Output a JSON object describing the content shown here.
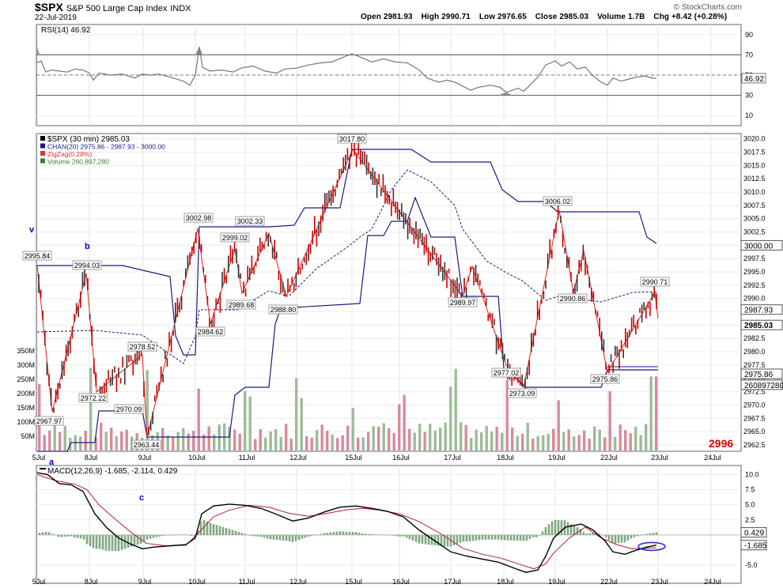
{
  "header": {
    "symbol": "$SPX",
    "name": "S&P 500 Large Cap Index",
    "exchange": "INDX",
    "date": "22-Jul-2019",
    "copyright": "© StockCharts.com",
    "open": "Open 2981.93",
    "high": "High 2990.71",
    "low": "Low 2976.65",
    "close": "Close 2985.03",
    "volume": "Volume 1.7B",
    "chg": "Chg +8.42 (+0.28%)"
  },
  "rsi_panel": {
    "label": "RSI(14) 46.92",
    "current_tag": "46.92",
    "y_ticks": [
      90,
      70,
      50,
      30,
      10
    ]
  },
  "price_panel": {
    "legend": [
      "$SPX (30 min) 2985.03",
      "CHAN(20) 2975.86 - 2987.93 - 3000.00",
      "ZigZag(0.28%)",
      "Volume 260,897,280"
    ],
    "y_ticks": [
      "3020.0",
      "3017.5",
      "3015.0",
      "3012.5",
      "3010.0",
      "3007.5",
      "3005.0",
      "3002.5",
      "3000.0",
      "2997.5",
      "2995.0",
      "2992.5",
      "2990.0",
      "2987.5",
      "2985.0",
      "2982.5",
      "2980.0",
      "2977.5",
      "2975.0",
      "2972.5",
      "2970.0",
      "2967.5",
      "2965.0",
      "2962.5"
    ],
    "right_tags": [
      "3000.00",
      "2987.93",
      "2985.03",
      "2975.86",
      "260897280"
    ],
    "volume_ticks": [
      "350M",
      "300M",
      "250M",
      "200M",
      "150M",
      "100M",
      "50M"
    ],
    "pivot_labels": [
      "2995.84",
      "2994.03",
      "2967.97",
      "2972.22",
      "2978.52",
      "2970.09",
      "2963.44",
      "3002.98",
      "2984.62",
      "2999.02",
      "2989.68",
      "3002.33",
      "2988.80",
      "3017.80",
      "2989.97",
      "2977.02",
      "2973.09",
      "3006.02",
      "2990.86",
      "2975.86",
      "2990.71"
    ],
    "wave_labels": [
      "v",
      "b",
      "a",
      "c"
    ],
    "annotation": "2996"
  },
  "macd_panel": {
    "label": "MACD(12,26,9) -1.685, -2.114, 0.429",
    "y_ticks": [
      "10.0",
      "7.5",
      "5.0",
      "2.5",
      "-5.0"
    ],
    "right_tags": [
      "0.429",
      "-1.685"
    ]
  },
  "x_axis": {
    "labels": [
      "5Jul",
      "8Jul",
      "9Jul",
      "10Jul",
      "11Jul",
      "12Jul",
      "15Jul",
      "16Jul",
      "17Jul",
      "18Jul",
      "19Jul",
      "22Jul",
      "23Jul",
      "24Jul"
    ]
  },
  "chart_data": {
    "type": "line",
    "title": "$SPX S&P 500 Large Cap Index (30 min)",
    "x": [
      "5Jul",
      "8Jul",
      "9Jul",
      "10Jul",
      "11Jul",
      "12Jul",
      "15Jul",
      "16Jul",
      "17Jul",
      "18Jul",
      "19Jul",
      "22Jul"
    ],
    "series": [
      {
        "name": "ZigZag(0.28%)",
        "values": [
          {
            "x": "5Jul",
            "y": 2995.84
          },
          {
            "x": "5Jul",
            "y": 2967.97
          },
          {
            "x": "8Jul",
            "y": 2994.03
          },
          {
            "x": "8Jul",
            "y": 2972.22
          },
          {
            "x": "8Jul",
            "y": 2978.52
          },
          {
            "x": "9Jul",
            "y": 2970.09
          },
          {
            "x": "9Jul",
            "y": 2978.52
          },
          {
            "x": "9Jul",
            "y": 2963.44
          },
          {
            "x": "10Jul",
            "y": 3002.98
          },
          {
            "x": "10Jul",
            "y": 2984.62
          },
          {
            "x": "10Jul",
            "y": 2999.02
          },
          {
            "x": "11Jul",
            "y": 2989.68
          },
          {
            "x": "11Jul",
            "y": 3002.33
          },
          {
            "x": "12Jul",
            "y": 2988.8
          },
          {
            "x": "15Jul",
            "y": 3017.8
          },
          {
            "x": "17Jul",
            "y": 2989.97
          },
          {
            "x": "17Jul",
            "y": 2997.0
          },
          {
            "x": "18Jul",
            "y": 2977.02
          },
          {
            "x": "18Jul",
            "y": 2973.09
          },
          {
            "x": "19Jul",
            "y": 3006.02
          },
          {
            "x": "19Jul",
            "y": 2990.86
          },
          {
            "x": "19Jul",
            "y": 2998.0
          },
          {
            "x": "22Jul",
            "y": 2975.86
          },
          {
            "x": "22Jul",
            "y": 2990.71
          },
          {
            "x": "22Jul",
            "y": 2985.03
          }
        ]
      },
      {
        "name": "RSI(14)",
        "last": 46.92
      },
      {
        "name": "MACD(12,26,9)",
        "last": [
          -1.685,
          -2.114,
          0.429
        ]
      }
    ],
    "ylim": [
      2962.5,
      3020.0
    ],
    "channel_last": [
      2975.86,
      2987.93,
      3000.0
    ],
    "volume_last": 260897280,
    "colors": {
      "price": "#cc0000",
      "zigzag": "#e23030",
      "channel": "#1a1a80",
      "volume_up": "#9dbb98",
      "volume_down": "#d88a9a",
      "macd": "#000000",
      "signal": "#b02040",
      "hist": "#7fa87f",
      "ellipse": "#2233cc",
      "annot": "#dd0000",
      "wave": "#0000cc"
    }
  }
}
